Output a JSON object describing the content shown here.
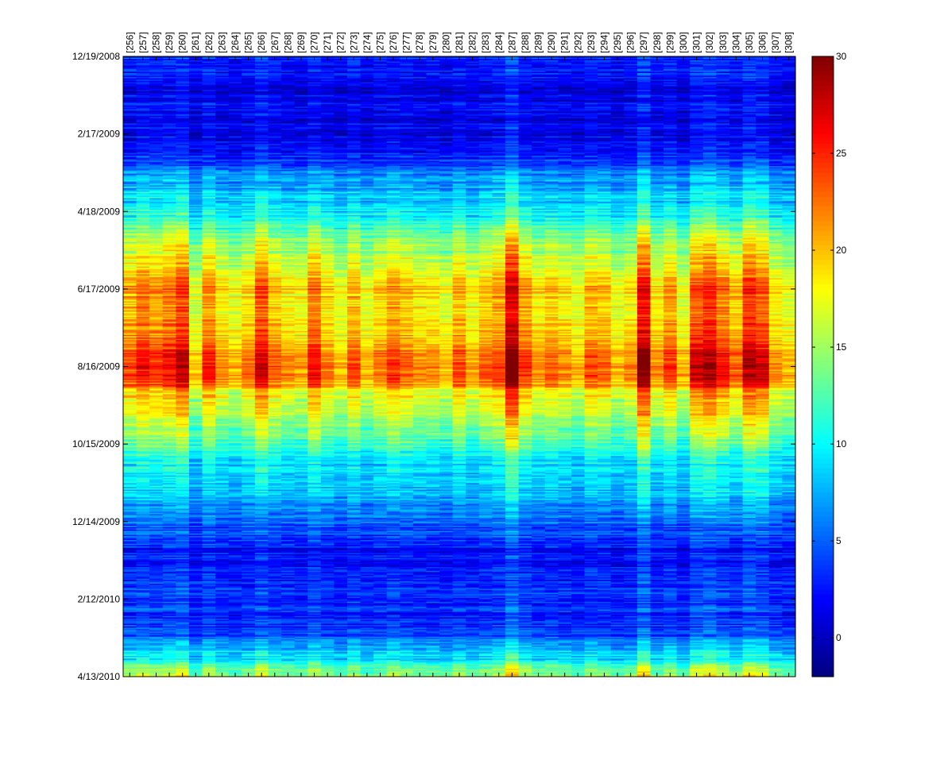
{
  "chart_data": {
    "type": "heatmap",
    "title": "",
    "xlabel": "",
    "ylabel": "",
    "x_categories": [
      "[256]",
      "[257]",
      "[258]",
      "[259]",
      "[260]",
      "[261]",
      "[262]",
      "[263]",
      "[264]",
      "[265]",
      "[266]",
      "[267]",
      "[268]",
      "[269]",
      "[270]",
      "[271]",
      "[272]",
      "[273]",
      "[274]",
      "[275]",
      "[276]",
      "[277]",
      "[278]",
      "[279]",
      "[280]",
      "[281]",
      "[282]",
      "[283]",
      "[284]",
      "[287]",
      "[288]",
      "[289]",
      "[290]",
      "[291]",
      "[292]",
      "[293]",
      "[294]",
      "[295]",
      "[296]",
      "[297]",
      "[298]",
      "[299]",
      "[300]",
      "[301]",
      "[302]",
      "[303]",
      "[304]",
      "[305]",
      "[306]",
      "[307]",
      "[308]"
    ],
    "x_axis_position": "top",
    "y_axis": {
      "type": "date",
      "range": [
        "2008-12-19",
        "2010-04-13"
      ],
      "tick_labels": [
        "12/19/2008",
        "2/17/2009",
        "4/18/2009",
        "6/17/2009",
        "8/16/2009",
        "10/15/2009",
        "12/14/2009",
        "2/12/2010",
        "4/13/2010"
      ],
      "tick_dates": [
        "2008-12-19",
        "2009-02-17",
        "2009-04-18",
        "2009-06-17",
        "2009-08-16",
        "2009-10-15",
        "2009-12-14",
        "2010-02-12",
        "2010-04-13"
      ]
    },
    "seasonal_profile": {
      "dates": [
        "2008-12-19",
        "2009-01-10",
        "2009-02-17",
        "2009-03-05",
        "2009-03-20",
        "2009-04-05",
        "2009-04-18",
        "2009-05-05",
        "2009-05-20",
        "2009-06-05",
        "2009-06-17",
        "2009-07-05",
        "2009-07-25",
        "2009-08-05",
        "2009-08-16",
        "2009-08-28",
        "2009-09-05",
        "2009-09-20",
        "2009-10-05",
        "2009-10-15",
        "2009-10-25",
        "2009-11-10",
        "2009-11-25",
        "2009-12-14",
        "2009-12-28",
        "2010-01-10",
        "2010-02-01",
        "2010-02-12",
        "2010-02-25",
        "2010-03-10",
        "2010-03-20",
        "2010-04-01",
        "2010-04-07",
        "2010-04-13"
      ],
      "values": [
        3,
        1,
        1.5,
        3,
        6,
        8,
        9,
        13,
        15,
        17,
        19,
        18,
        19,
        21,
        22,
        21,
        17,
        16,
        13,
        12,
        9,
        8,
        7,
        5,
        3,
        2,
        3,
        3,
        3,
        3,
        7,
        9,
        12,
        14
      ]
    },
    "column_offsets": [
      1.5,
      3,
      2,
      3,
      4.5,
      -1.5,
      2.5,
      0,
      -1,
      0.5,
      4,
      1,
      0,
      -0.5,
      3,
      0.5,
      -1,
      1.5,
      -1,
      0.5,
      2,
      1,
      0,
      0,
      -1,
      1.5,
      -0.5,
      1,
      2,
      7,
      2,
      0,
      1,
      0,
      -1,
      1.5,
      1,
      -1,
      0,
      6,
      0,
      2,
      -1,
      4,
      5,
      3,
      1,
      5,
      4,
      0,
      -1
    ],
    "colorbar": {
      "colormap": "jet",
      "range": [
        -2,
        30
      ],
      "tick_labels": [
        "0",
        "5",
        "10",
        "15",
        "20",
        "25",
        "30"
      ],
      "tick_values": [
        0,
        5,
        10,
        15,
        20,
        25,
        30
      ],
      "position": "right"
    },
    "grid": false
  }
}
